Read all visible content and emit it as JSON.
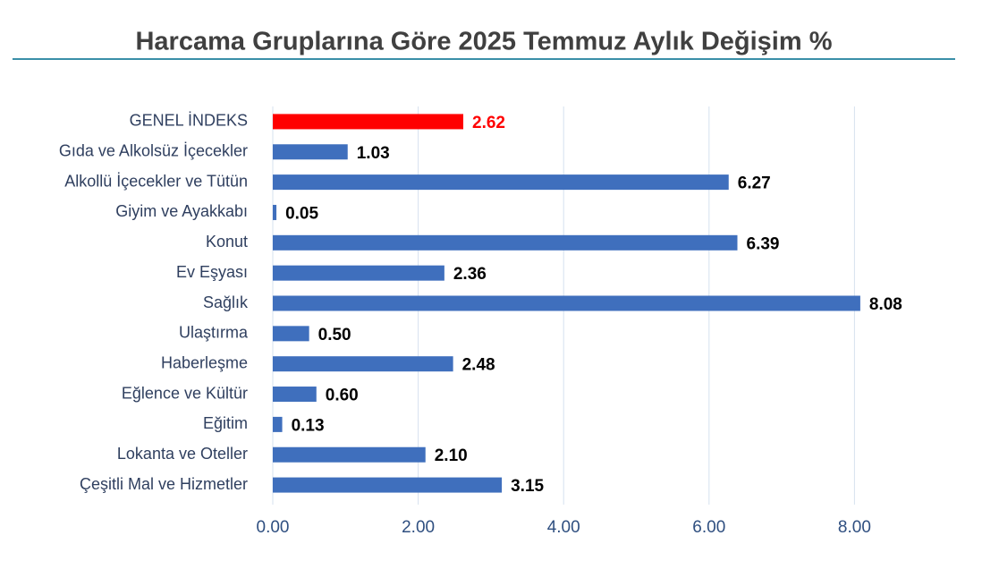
{
  "chart_data": {
    "type": "bar",
    "orientation": "horizontal",
    "title": "Harcama Gruplarına Göre 2025 Temmuz Aylık Değişim %",
    "categories": [
      "GENEL İNDEKS",
      "Gıda ve Alkolsüz İçecekler",
      "Alkollü İçecekler ve Tütün",
      "Giyim ve Ayakkabı",
      "Konut",
      "Ev Eşyası",
      "Sağlık",
      "Ulaştırma",
      "Haberleşme",
      "Eğlence ve Kültür",
      "Eğitim",
      "Lokanta ve Oteller",
      "Çeşitli Mal ve Hizmetler"
    ],
    "values": [
      2.62,
      1.03,
      6.27,
      0.05,
      6.39,
      2.36,
      8.08,
      0.5,
      2.48,
      0.6,
      0.13,
      2.1,
      3.15
    ],
    "value_labels": [
      "2.62",
      "1.03",
      "6.27",
      "0.05",
      "6.39",
      "2.36",
      "8.08",
      "0.50",
      "2.48",
      "0.60",
      "0.13",
      "2.10",
      "3.15"
    ],
    "colors": [
      "#ff0000",
      "#3f6fbd",
      "#3f6fbd",
      "#3f6fbd",
      "#3f6fbd",
      "#3f6fbd",
      "#3f6fbd",
      "#3f6fbd",
      "#3f6fbd",
      "#3f6fbd",
      "#3f6fbd",
      "#3f6fbd",
      "#3f6fbd"
    ],
    "value_label_colors": [
      "#ff0000",
      "#000000",
      "#000000",
      "#000000",
      "#000000",
      "#000000",
      "#000000",
      "#000000",
      "#000000",
      "#000000",
      "#000000",
      "#000000",
      "#000000"
    ],
    "xlim": [
      0,
      9
    ],
    "xticks": [
      {
        "value": 0,
        "label": "0.00"
      },
      {
        "value": 2,
        "label": "2.00"
      },
      {
        "value": 4,
        "label": "4.00"
      },
      {
        "value": 6,
        "label": "6.00"
      },
      {
        "value": 8,
        "label": "8.00"
      }
    ],
    "grid": true
  }
}
